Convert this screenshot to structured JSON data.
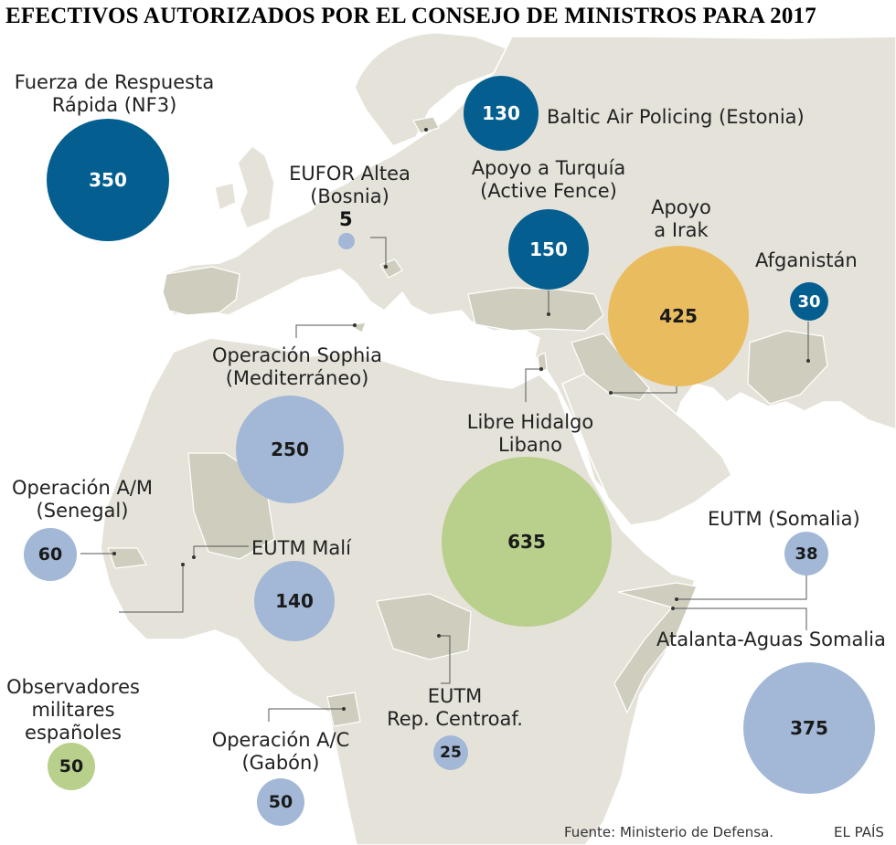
{
  "title": "EFECTIVOS AUTORIZADOS POR EL CONSEJO DE MINISTROS PARA 2017",
  "missions": [
    {
      "label": [
        "Fuerza de Respuesta",
        "Rápida (NF3)"
      ],
      "value": "350",
      "color": "#045f90"
    },
    {
      "label": [
        "Baltic Air Policing (Estonia)"
      ],
      "value": "130",
      "color": "#045f90"
    },
    {
      "label": [
        "EUFOR Altea",
        "(Bosnia)"
      ],
      "value": "5",
      "color": "#a2b8d6"
    },
    {
      "label": [
        "Apoyo a Turquía",
        "(Active Fence)"
      ],
      "value": "150",
      "color": "#045f90"
    },
    {
      "label": [
        "Apoyo",
        "a Irak"
      ],
      "value": "425",
      "color": "#e9bc5f"
    },
    {
      "label": [
        "Afganistán"
      ],
      "value": "30",
      "color": "#045f90"
    },
    {
      "label": [
        "Operación Sophia",
        "(Mediterráneo)"
      ],
      "value": "250",
      "color": "#a2b8d6"
    },
    {
      "label": [
        "Libre Hidalgo",
        "Libano"
      ],
      "value": "635",
      "color": "#b9cf8c"
    },
    {
      "label": [
        "Operación A/M",
        "(Senegal)"
      ],
      "value": "60",
      "color": "#a2b8d6"
    },
    {
      "label": [
        "EUTM Malí"
      ],
      "value": "140",
      "color": "#a2b8d6"
    },
    {
      "label": [
        "EUTM (Somalia)"
      ],
      "value": "38",
      "color": "#a2b8d6"
    },
    {
      "label": [
        "Atalanta-Aguas Somalia"
      ],
      "value": "375",
      "color": "#a2b8d6"
    },
    {
      "label": [
        "EUTM",
        "Rep. Centroaf."
      ],
      "value": "25",
      "color": "#a2b8d6"
    },
    {
      "label": [
        "Observadores",
        "militares",
        "españoles"
      ],
      "value": "50",
      "color": "#b9cf8c"
    },
    {
      "label": [
        "Operación A/C",
        "(Gabón)"
      ],
      "value": "50",
      "color": "#a2b8d6"
    }
  ],
  "source": "Fuente: Ministerio de Defensa.",
  "credit": "EL PAÍS",
  "colors": {
    "land": "#e5e3d9",
    "highlight": "#cfcdbd",
    "sea": "#ffffff",
    "border": "#ffffff"
  }
}
